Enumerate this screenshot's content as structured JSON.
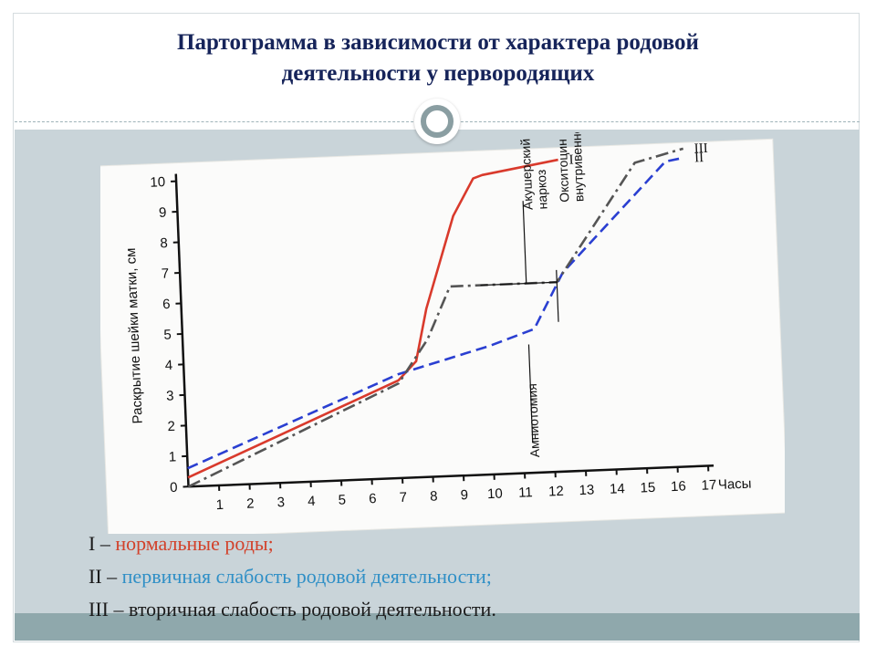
{
  "slide": {
    "title_line1": "Партограмма в зависимости от характера родовой",
    "title_line2": "деятельности у первородящих",
    "colors": {
      "title": "#16245a",
      "band": "#c9d4d9",
      "band_bottom": "#8fa8ac"
    }
  },
  "legend": [
    {
      "num": "I",
      "dash": " – ",
      "text": "нормальные роды;",
      "color": "#d2412a"
    },
    {
      "num": "II",
      "dash": " – ",
      "text": "первичная слабость родовой деятельности;",
      "color": "#2f8fc6"
    },
    {
      "num": "III",
      "dash": " – ",
      "text": "вторичная слабость родовой деятельности.",
      "color": "#1a1a1a"
    }
  ],
  "chart_data": {
    "type": "line",
    "title": "",
    "xlabel": "Часы",
    "ylabel": "Раскрытие шейки матки, см",
    "xlim": [
      0,
      17
    ],
    "ylim": [
      0,
      10
    ],
    "x_ticks": [
      1,
      2,
      3,
      4,
      5,
      6,
      7,
      8,
      9,
      10,
      11,
      12,
      13,
      14,
      15,
      16,
      17
    ],
    "y_ticks": [
      0,
      1,
      2,
      3,
      4,
      5,
      6,
      7,
      8,
      9,
      10
    ],
    "series": [
      {
        "name": "I",
        "color": "#d93a2c",
        "dash": "solid",
        "x": [
          0,
          7,
          7.6,
          8,
          9,
          9.7,
          10,
          12.5
        ],
        "y": [
          0.3,
          3.2,
          3.8,
          5.5,
          8.5,
          9.7,
          9.8,
          10.2
        ]
      },
      {
        "name": "II",
        "color": "#2a3fd1",
        "dash": "dash",
        "x": [
          0,
          7,
          10,
          11.5,
          12.5,
          15,
          16,
          16.6
        ],
        "y": [
          0.6,
          3.4,
          4.2,
          4.7,
          6.5,
          9,
          10,
          10.1
        ]
      },
      {
        "name": "III",
        "color": "#555555",
        "dash": "dashdot",
        "x": [
          0,
          7,
          8,
          8.8,
          12.3,
          15,
          16.6
        ],
        "y": [
          0,
          3.1,
          4.5,
          6.2,
          6.2,
          10,
          10.4
        ]
      }
    ],
    "annotations": [
      {
        "text": "Акушерский наркоз"
      },
      {
        "text": "Окситоцин внутривенно"
      },
      {
        "text": "Амниотомия"
      }
    ],
    "grid": false,
    "legend_position": "below"
  }
}
